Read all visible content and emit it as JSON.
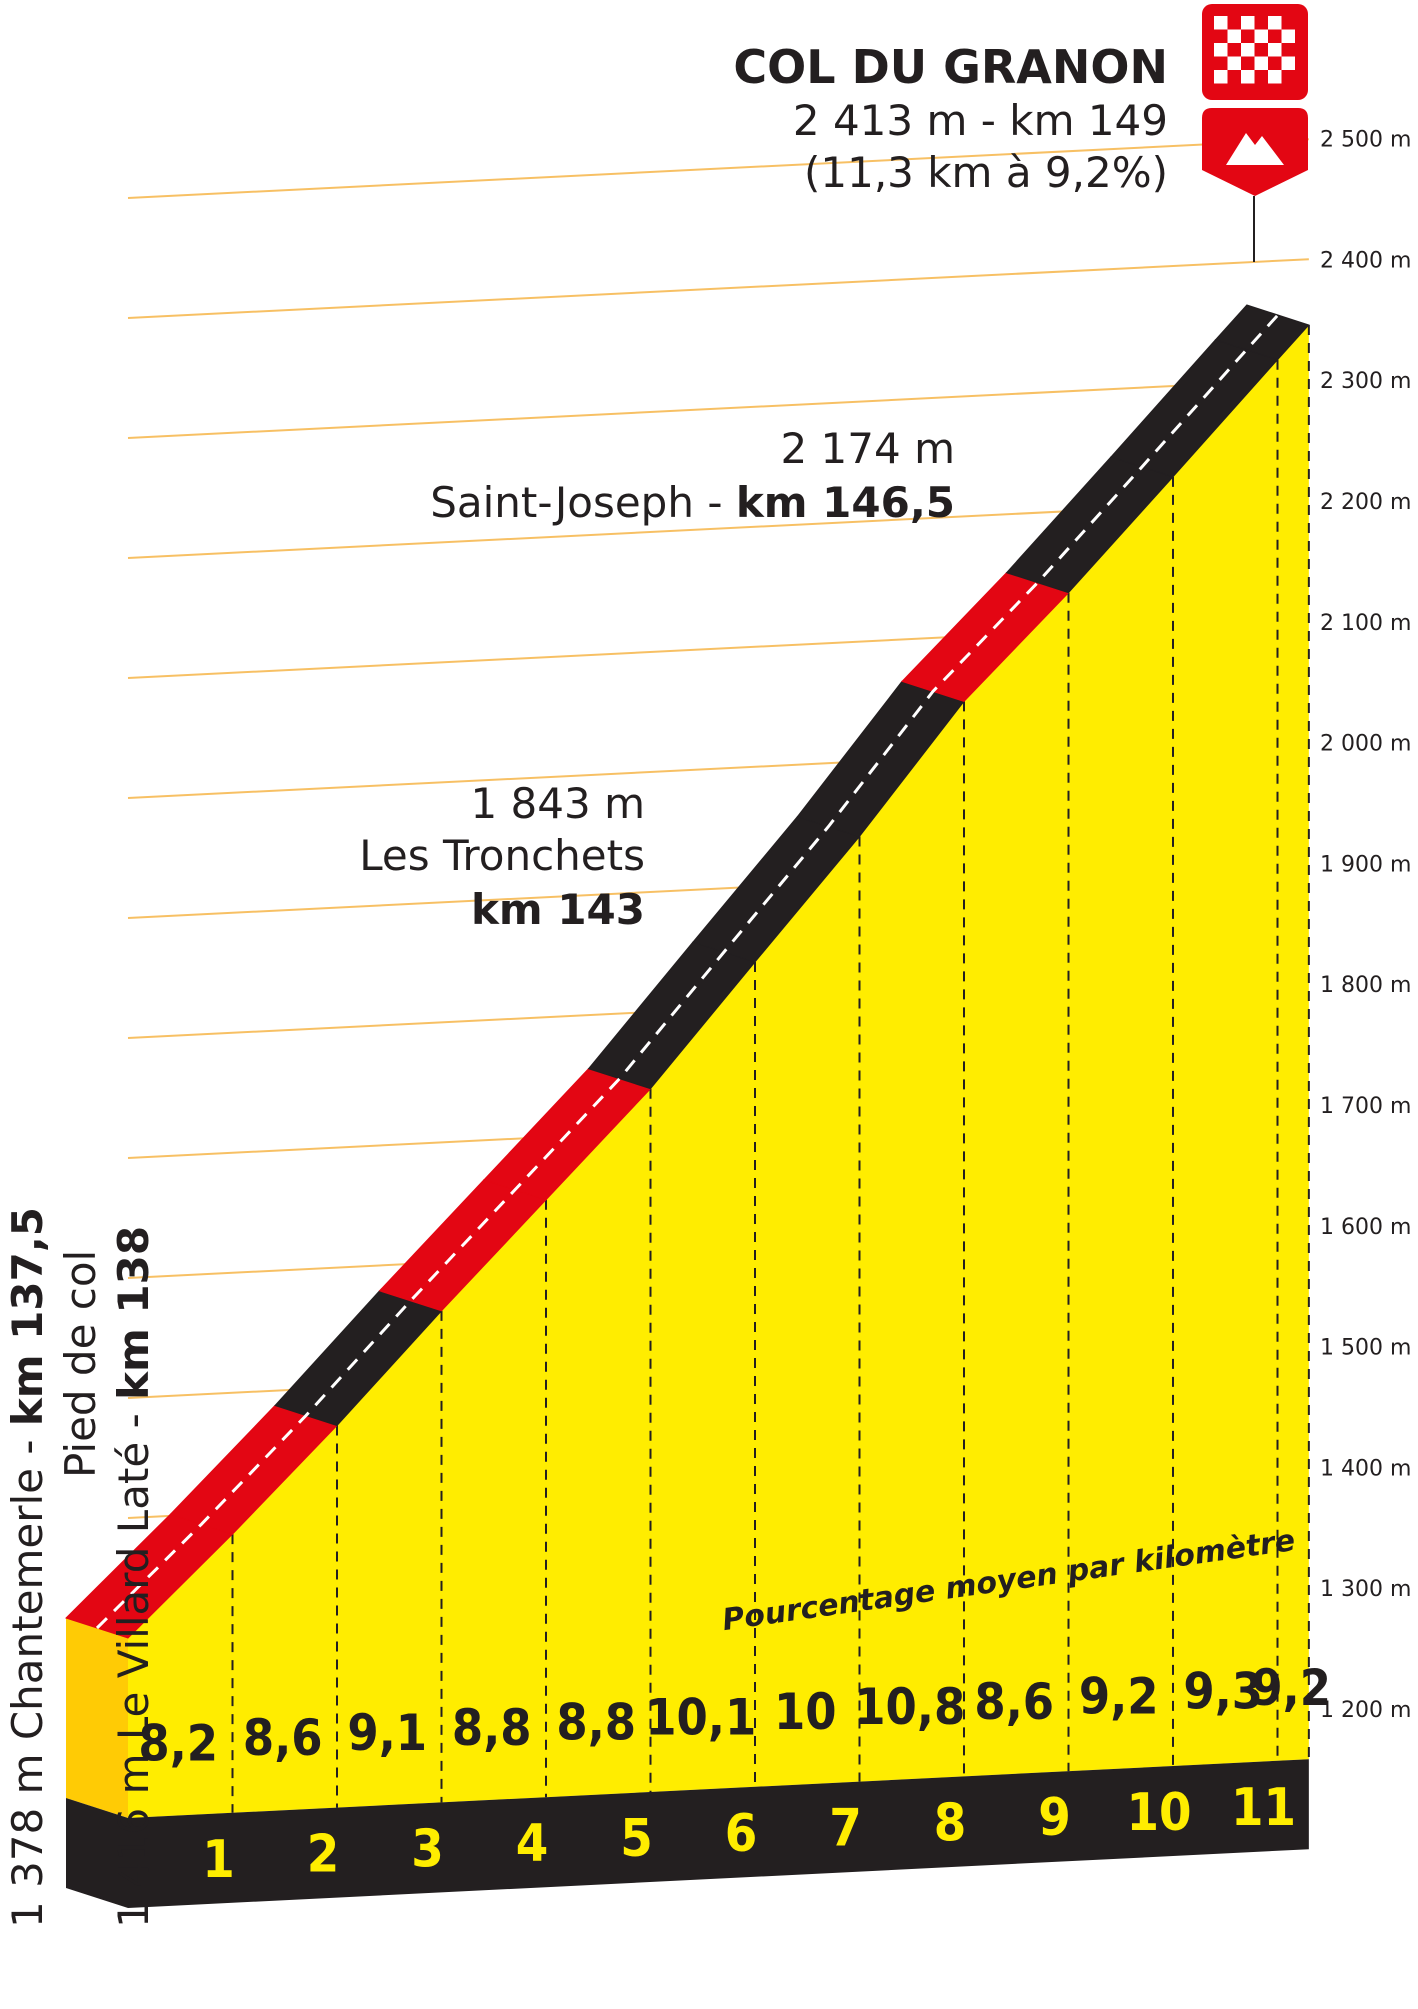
{
  "chart_data": {
    "type": "area",
    "title": "COL DU GRANON",
    "summit": {
      "name": "COL DU GRANON",
      "line2": "2 413 m - km 149",
      "line3": "(11,3 km à 9,2%)",
      "altitude": 2413,
      "km": 149
    },
    "start": {
      "line1_prefix": "1 378 m Chantemerle - ",
      "line1_bold": "km 137,5",
      "line2": "Pied de col",
      "line3_prefix": "1 416 m Le Villard Laté - ",
      "line3_bold": "km 138"
    },
    "waypoints": [
      {
        "altitude_label": "1 843 m",
        "name": "Les Tronchets",
        "km_label": "km 143",
        "km_index": 5,
        "altitude": 1843
      },
      {
        "altitude_label": "2 174 m",
        "name": "Saint-Joseph - ",
        "km_label": "km 146,5",
        "km_index": 8,
        "altitude": 2174
      }
    ],
    "subtitle": "Pourcentage moyen par kilomètre",
    "km_ticks": [
      "1",
      "2",
      "3",
      "4",
      "5",
      "6",
      "7",
      "8",
      "9",
      "10",
      "11"
    ],
    "gradients": [
      "8,2",
      "8,6",
      "9,1",
      "8,8",
      "8,8",
      "10,1",
      "10",
      "10,8",
      "8,6",
      "9,2",
      "9,3",
      "9,2"
    ],
    "gradient_values": [
      8.2,
      8.6,
      9.1,
      8.8,
      8.8,
      10.1,
      10.0,
      10.8,
      8.6,
      9.2,
      9.3,
      9.2
    ],
    "segment_colors": [
      "red",
      "red",
      "black",
      "red",
      "red",
      "black",
      "black",
      "black",
      "red",
      "black",
      "black",
      "black"
    ],
    "y_ticks": [
      "1 200 m",
      "1 300 m",
      "1 400 m",
      "1 500 m",
      "1 600 m",
      "1 700 m",
      "1 800 m",
      "1 900 m",
      "2 000 m",
      "2 100 m",
      "2 200 m",
      "2 300 m",
      "2 400 m",
      "2 500 m"
    ],
    "ylim": [
      1200,
      2500
    ],
    "xlim": [
      0,
      11.3
    ]
  },
  "colors": {
    "yellow": "#ffed00",
    "orange": "#ffcb05",
    "red": "#e30613",
    "black": "#231f20",
    "grid": "#f5a623"
  }
}
